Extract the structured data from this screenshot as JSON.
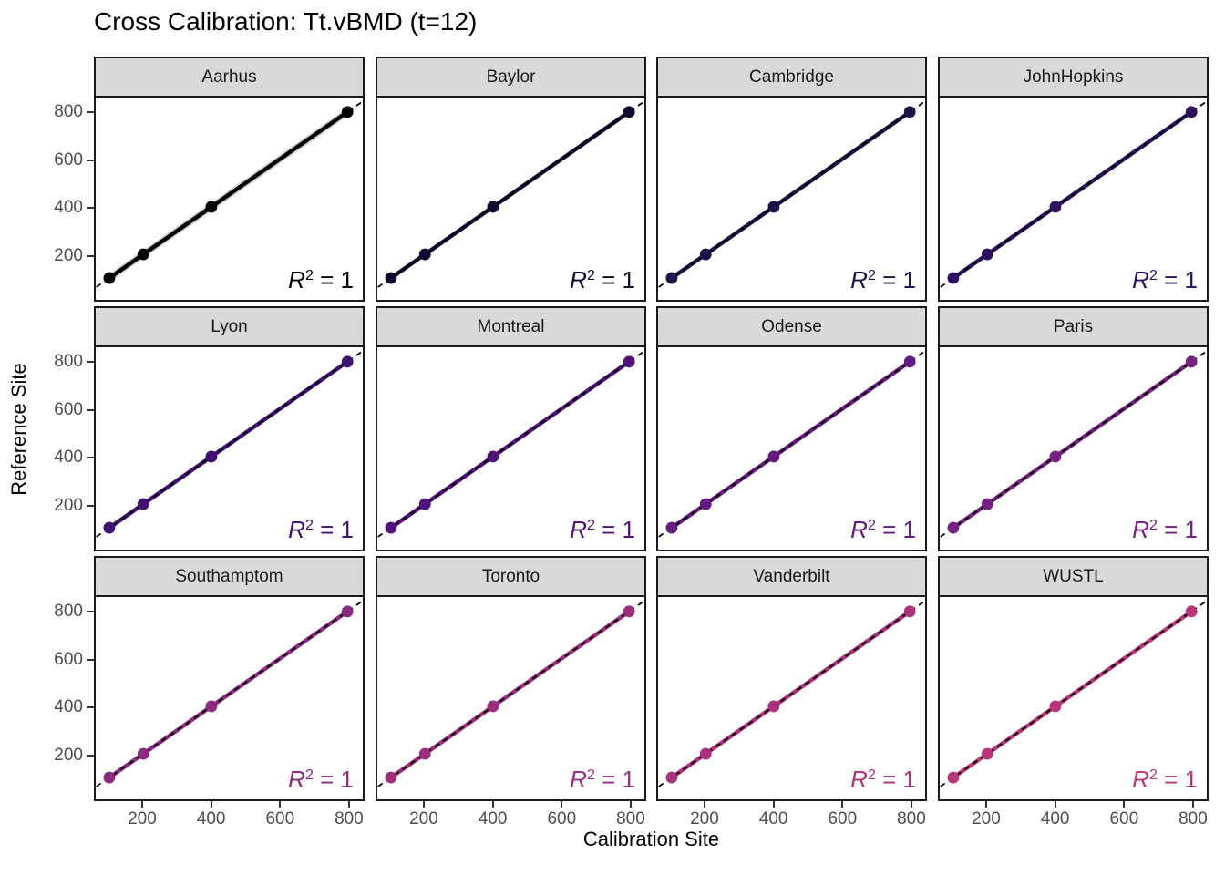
{
  "title": "Cross Calibration: Tt.vBMD (t=12)",
  "axes": {
    "x_label": "Calibration Site",
    "y_label": "Reference Site",
    "x_ticks": [
      200,
      400,
      600,
      800
    ],
    "y_ticks": [
      200,
      400,
      600,
      800
    ]
  },
  "style": {
    "background": "#FFFFFF",
    "title_color": "#000000",
    "axis_label_color": "#000000",
    "strip_bg": "#D9D9D9",
    "strip_text_color": "#1A1A1A",
    "panel_border": "#1A1A1A",
    "tick_label_color": "#4D4D4D",
    "tick_mark_color": "#333333",
    "identity_line_color": "#000000",
    "se_ribbon_color": "#999999"
  },
  "chart_data": {
    "type": "scatter",
    "title": "Cross Calibration: Tt.vBMD (t=12)",
    "xlabel": "Calibration Site",
    "ylabel": "Reference Site",
    "xlim": [
      60,
      845
    ],
    "ylim": [
      8,
      861
    ],
    "x_ticks": [
      200,
      400,
      600,
      800
    ],
    "y_ticks": [
      200,
      400,
      600,
      800
    ],
    "grid": false,
    "legend": "none",
    "facet_grid": {
      "rows": 3,
      "cols": 4
    },
    "points": [
      [
        100,
        100
      ],
      [
        200,
        200
      ],
      [
        400,
        400
      ],
      [
        800,
        800
      ]
    ],
    "fit_line": {
      "slope": 1,
      "intercept": 0,
      "x_start": 100,
      "x_end": 800
    },
    "identity_line": {
      "style": "dashed",
      "x_start": 62,
      "x_end": 843
    },
    "annotation_parts": {
      "r": "R",
      "sup": "2",
      "rest": " = 1"
    },
    "facets": [
      {
        "label": "Aarhus",
        "color": "#000004",
        "r2_text": "R² = 1",
        "se_ribbon_visible": true
      },
      {
        "label": "Baylor",
        "color": "#10092D",
        "r2_text": "R² = 1",
        "se_ribbon_visible": false
      },
      {
        "label": "Cambridge",
        "color": "#1D1147",
        "r2_text": "R² = 1",
        "se_ribbon_visible": false
      },
      {
        "label": "JohnHopkins",
        "color": "#2D1160",
        "r2_text": "R² = 1",
        "se_ribbon_visible": false
      },
      {
        "label": "Lyon",
        "color": "#3F0F72",
        "r2_text": "R² = 1",
        "se_ribbon_visible": false
      },
      {
        "label": "Montreal",
        "color": "#51127C",
        "r2_text": "R² = 1",
        "se_ribbon_visible": false
      },
      {
        "label": "Odense",
        "color": "#641A80",
        "r2_text": "R² = 1",
        "se_ribbon_visible": false
      },
      {
        "label": "Paris",
        "color": "#762181",
        "r2_text": "R² = 1",
        "se_ribbon_visible": false
      },
      {
        "label": "Southamptom",
        "color": "#8C2981",
        "r2_text": "R² = 1",
        "se_ribbon_visible": false
      },
      {
        "label": "Toronto",
        "color": "#9C2E7E",
        "r2_text": "R² = 1",
        "se_ribbon_visible": false
      },
      {
        "label": "Vanderbilt",
        "color": "#A9327C",
        "r2_text": "R² = 1",
        "se_ribbon_visible": false
      },
      {
        "label": "WUSTL",
        "color": "#B73779",
        "r2_text": "R² = 1",
        "se_ribbon_visible": false
      }
    ]
  }
}
